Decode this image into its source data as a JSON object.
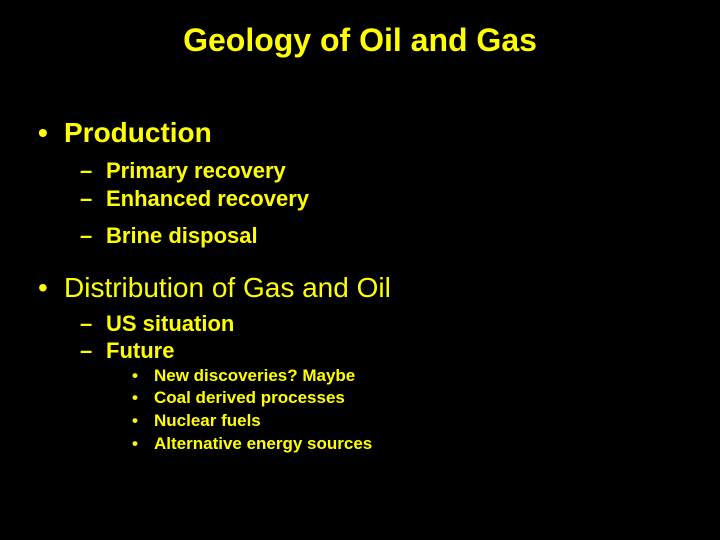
{
  "colors": {
    "background": "#000000",
    "text": "#ffff00"
  },
  "typography": {
    "title_fontsize": 32,
    "l1_fontsize": 28,
    "l2_fontsize": 22,
    "l3_fontsize": 17,
    "font_family": "Arial"
  },
  "title": "Geology of Oil and Gas",
  "sections": [
    {
      "label": "Production",
      "bold": true,
      "items": [
        {
          "label": "Primary recovery"
        },
        {
          "label": "Enhanced recovery"
        },
        {
          "label": "Brine disposal",
          "gap_before": true
        }
      ]
    },
    {
      "label": "Distribution of Gas and Oil",
      "bold": false,
      "items": [
        {
          "label": "US situation"
        },
        {
          "label": "Future",
          "subitems": [
            "New discoveries?  Maybe",
            "Coal derived processes",
            "Nuclear fuels",
            "Alternative energy sources"
          ]
        }
      ]
    }
  ]
}
